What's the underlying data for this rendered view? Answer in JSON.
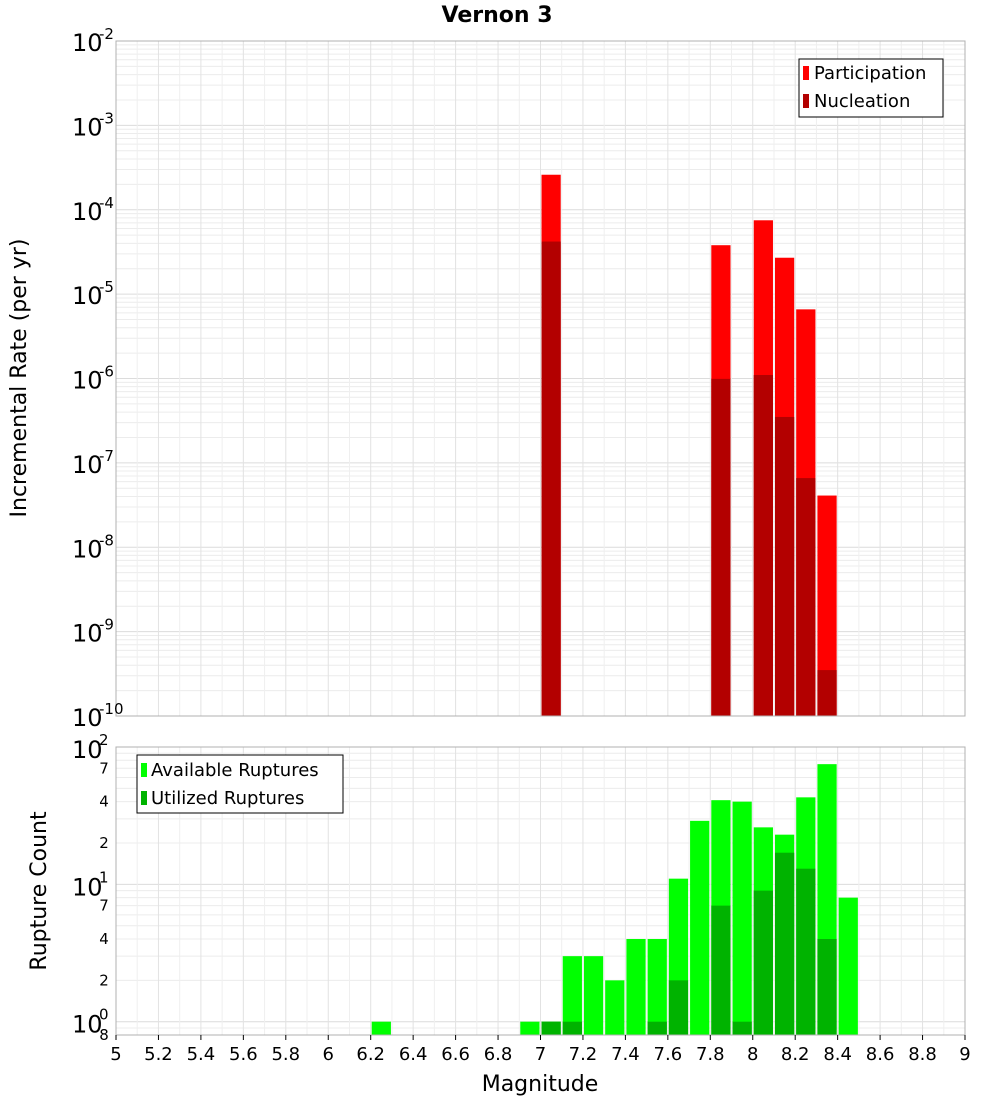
{
  "chart_data": [
    {
      "type": "bar",
      "title": "Vernon 3",
      "xlabel": "",
      "ylabel": "Incremental Rate (per yr)",
      "yscale": "log",
      "ylim": [
        1e-10,
        0.01
      ],
      "xlim": [
        5,
        9
      ],
      "y_tick_labels": [
        {
          "base": "10",
          "exp": "-10"
        },
        {
          "base": "10",
          "exp": "-9"
        },
        {
          "base": "10",
          "exp": "-8"
        },
        {
          "base": "10",
          "exp": "-7"
        },
        {
          "base": "10",
          "exp": "-6"
        },
        {
          "base": "10",
          "exp": "-5"
        },
        {
          "base": "10",
          "exp": "-4"
        },
        {
          "base": "10",
          "exp": "-3"
        },
        {
          "base": "10",
          "exp": "-2"
        }
      ],
      "grid": true,
      "legend_position": "top-right",
      "series": [
        {
          "name": "Participation",
          "color": "#ff0000",
          "x": [
            7.05,
            7.85,
            8.05,
            8.15,
            8.25,
            8.35
          ],
          "values": [
            0.00026,
            3.8e-05,
            7.5e-05,
            2.7e-05,
            6.6e-06,
            4.1e-08
          ]
        },
        {
          "name": "Nucleation",
          "color": "#b30000",
          "x": [
            7.05,
            7.85,
            8.05,
            8.15,
            8.25,
            8.35
          ],
          "values": [
            4.2e-05,
            9.9e-07,
            1.1e-06,
            3.5e-07,
            6.6e-08,
            3.5e-10
          ]
        }
      ]
    },
    {
      "type": "bar",
      "title": "",
      "xlabel": "Magnitude",
      "ylabel": "Rupture Count",
      "yscale": "log",
      "ylim": [
        0.8,
        100
      ],
      "xlim": [
        5,
        9
      ],
      "x_ticks": [
        "5",
        "5.2",
        "5.4",
        "5.6",
        "5.8",
        "6",
        "6.2",
        "6.4",
        "6.6",
        "6.8",
        "7",
        "7.2",
        "7.4",
        "7.6",
        "7.8",
        "8",
        "8.2",
        "8.4",
        "8.6",
        "8.8",
        "9"
      ],
      "y_major_ticks": [
        {
          "value": 1,
          "base": "10",
          "exp": "0"
        },
        {
          "value": 10,
          "base": "10",
          "exp": "1"
        },
        {
          "value": 100,
          "base": "10",
          "exp": "2"
        }
      ],
      "y_minor_labels": [
        {
          "value": 0.8,
          "label": "8"
        },
        {
          "value": 2,
          "label": "2"
        },
        {
          "value": 4,
          "label": "4"
        },
        {
          "value": 7,
          "label": "7"
        },
        {
          "value": 20,
          "label": "2"
        },
        {
          "value": 40,
          "label": "4"
        },
        {
          "value": 70,
          "label": "7"
        }
      ],
      "grid": true,
      "legend_position": "top-left",
      "series": [
        {
          "name": "Available Ruptures",
          "color": "#00ff00",
          "x": [
            6.25,
            6.95,
            7.05,
            7.15,
            7.25,
            7.35,
            7.45,
            7.55,
            7.65,
            7.75,
            7.85,
            7.95,
            8.05,
            8.15,
            8.25,
            8.35,
            8.45
          ],
          "values": [
            1,
            1,
            1,
            3,
            3,
            2,
            4,
            4,
            11,
            29,
            41,
            40,
            26,
            23,
            43,
            75,
            8
          ]
        },
        {
          "name": "Utilized Ruptures",
          "color": "#00b300",
          "x": [
            7.05,
            7.15,
            7.55,
            7.65,
            7.85,
            7.95,
            8.05,
            8.15,
            8.25,
            8.35
          ],
          "values": [
            1,
            1,
            1,
            2,
            7,
            1,
            9,
            17,
            13,
            4
          ]
        }
      ]
    }
  ]
}
